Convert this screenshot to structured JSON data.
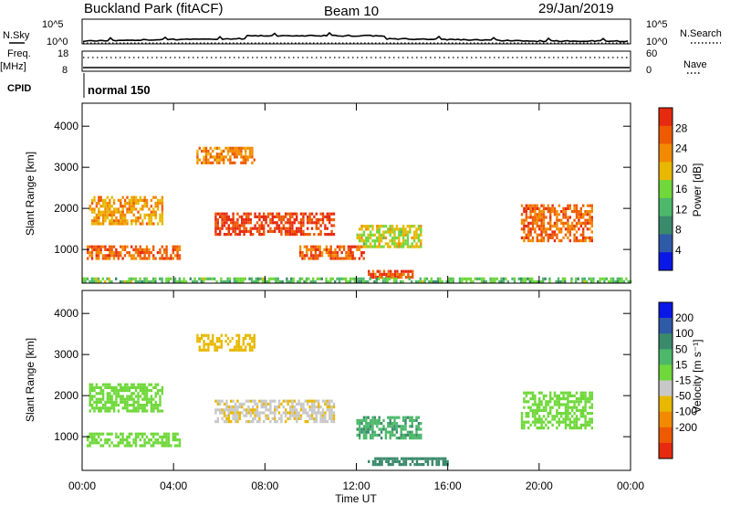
{
  "header": {
    "station": "Buckland Park (fitACF)",
    "beam": "Beam 10",
    "date": "29/Jan/2019"
  },
  "top_panel": {
    "nsky_label": "N.Sky",
    "nsky_tick_hi": "10^5",
    "nsky_tick_lo": "10^0",
    "nsky_tick_hi_right": "10^5",
    "nsky_tick_lo_right": "10^0",
    "nsearch_label": "N.Search",
    "freq_label": "Freq.",
    "freq_unit": "[MHz]",
    "freq_tick_hi": "18",
    "freq_tick_lo": "8",
    "nave_label": "Nave",
    "nave_tick_hi": "60",
    "nave_tick_lo": "0",
    "cpid_label": "CPID",
    "cpid_value": "normal 150"
  },
  "chart_data": [
    {
      "type": "heatmap",
      "title": "",
      "xlabel": "",
      "ylabel": "Slant Range [km]",
      "x_ticks": [
        "00:00",
        "04:00",
        "08:00",
        "12:00",
        "16:00",
        "20:00",
        "00:00"
      ],
      "y_ticks": [
        1000,
        2000,
        3000,
        4000
      ],
      "xlim": [
        0,
        24
      ],
      "ylim": [
        180,
        4560
      ],
      "colorbar": {
        "label": "Power [dB]",
        "ticks": [
          4,
          8,
          12,
          16,
          20,
          24,
          28
        ],
        "colors": [
          "#0a18e6",
          "#2e5aa8",
          "#3a8a6c",
          "#4db86a",
          "#6fd83a",
          "#e8b800",
          "#f28a00",
          "#ee5a00",
          "#e62a10"
        ]
      },
      "echo_regions_hours_km": [
        {
          "t": [
            0.2,
            4.3
          ],
          "r": [
            750,
            1100
          ],
          "level": 26
        },
        {
          "t": [
            0.3,
            3.5
          ],
          "r": [
            1600,
            2300
          ],
          "level": 22
        },
        {
          "t": [
            5.8,
            11.0
          ],
          "r": [
            1400,
            1900
          ],
          "level": 29
        },
        {
          "t": [
            5.0,
            7.5
          ],
          "r": [
            3100,
            3500
          ],
          "level": 24
        },
        {
          "t": [
            9.5,
            12.3
          ],
          "r": [
            800,
            1100
          ],
          "level": 27
        },
        {
          "t": [
            12.0,
            14.8
          ],
          "r": [
            1100,
            1600
          ],
          "level": 18
        },
        {
          "t": [
            12.5,
            14.5
          ],
          "r": [
            300,
            500
          ],
          "level": 28
        },
        {
          "t": [
            19.2,
            22.3
          ],
          "r": [
            1200,
            2100
          ],
          "level": 26
        },
        {
          "t": [
            0.0,
            24.0
          ],
          "r": [
            200,
            320
          ],
          "level": 14
        }
      ]
    },
    {
      "type": "heatmap",
      "title": "",
      "xlabel": "Time UT",
      "ylabel": "Slant Range [km]",
      "x_ticks": [
        "00:00",
        "04:00",
        "08:00",
        "12:00",
        "16:00",
        "20:00",
        "00:00"
      ],
      "y_ticks": [
        1000,
        2000,
        3000,
        4000
      ],
      "xlim": [
        0,
        24
      ],
      "ylim": [
        180,
        4560
      ],
      "colorbar": {
        "label": "Velocity [m s⁻¹]",
        "ticks": [
          200,
          100,
          50,
          15,
          -15,
          -50,
          -100,
          -200
        ],
        "colors": [
          "#0a18e6",
          "#2e5aa8",
          "#3a8a6c",
          "#4db86a",
          "#6fd83a",
          "#c8c8c8",
          "#e8b800",
          "#f28a00",
          "#ee5a00",
          "#e62a10"
        ]
      },
      "echo_regions_hours_km": [
        {
          "t": [
            0.2,
            4.3
          ],
          "r": [
            750,
            1100
          ],
          "level": -10
        },
        {
          "t": [
            0.3,
            3.5
          ],
          "r": [
            1600,
            2300
          ],
          "level": -5
        },
        {
          "t": [
            5.8,
            11.0
          ],
          "r": [
            1400,
            1900
          ],
          "level": -30
        },
        {
          "t": [
            5.0,
            7.5
          ],
          "r": [
            3100,
            3500
          ],
          "level": -40
        },
        {
          "t": [
            12.0,
            14.8
          ],
          "r": [
            1000,
            1500
          ],
          "level": 30
        },
        {
          "t": [
            19.2,
            22.3
          ],
          "r": [
            1200,
            2100
          ],
          "level": 0
        },
        {
          "t": [
            12.5,
            16.0
          ],
          "r": [
            300,
            500
          ],
          "level": 40
        }
      ]
    }
  ]
}
